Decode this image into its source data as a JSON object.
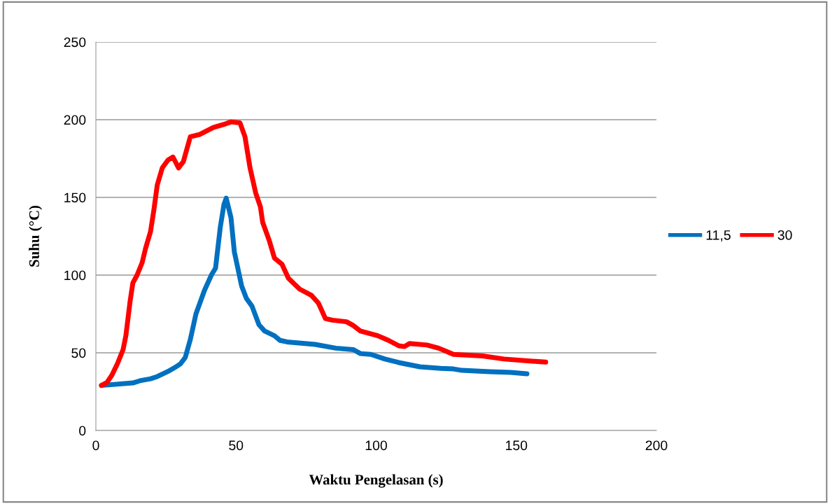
{
  "chart_data": {
    "type": "line",
    "xlabel": "Waktu Pengelasan (s)",
    "ylabel": "Suhu (°C)",
    "xlim": [
      0,
      200
    ],
    "xticks": [
      0,
      50,
      100,
      150,
      200
    ],
    "ylim": [
      0,
      250
    ],
    "yticks": [
      0,
      50,
      100,
      150,
      200,
      250
    ],
    "grid": "y",
    "legend": "right",
    "marker": "none",
    "line_style": "solid",
    "series": [
      {
        "name": "11,5",
        "color": "#0070c0",
        "x": [
          2,
          13.2,
          15.7,
          19.5,
          21.9,
          25.7,
          28.6,
          30.2,
          31.9,
          33.7,
          35.7,
          38.7,
          41.2,
          42.7,
          44.4,
          45.7,
          46.5,
          48.2,
          49.4,
          52,
          53.7,
          55.7,
          58.2,
          60.2,
          63.7,
          65.7,
          68.2,
          78.2,
          85.6,
          91.9,
          94.4,
          98.1,
          103.1,
          108.1,
          115.6,
          123.1,
          127.6,
          130.6,
          140.6,
          148,
          153.8
        ],
        "values": [
          29,
          30.6,
          32,
          33.3,
          34.7,
          38,
          41,
          43,
          47,
          58.6,
          75,
          90,
          100,
          104.5,
          131,
          145.5,
          149.5,
          137,
          115,
          93,
          85,
          80,
          68,
          64,
          61,
          58,
          57,
          55.4,
          53,
          52,
          49.5,
          49,
          46,
          43.7,
          41,
          40,
          39.6,
          38.7,
          37.8,
          37.4,
          36.5
        ]
      },
      {
        "name": "30",
        "color": "#ff0000",
        "x": [
          2,
          4,
          5.7,
          7.7,
          9.7,
          10.7,
          12.2,
          13.2,
          14.7,
          16.5,
          17.7,
          19.5,
          20.7,
          21.9,
          23.7,
          25.7,
          27.5,
          29.5,
          31.2,
          33.7,
          37,
          41.9,
          45.7,
          48.2,
          51.4,
          53.2,
          55,
          57,
          58.7,
          59.5,
          61.9,
          63.7,
          66.4,
          68.7,
          72.7,
          76.9,
          79.4,
          81.9,
          84.4,
          89.4,
          91.9,
          94.4,
          100.6,
          104.4,
          108.1,
          110.1,
          111.9,
          118.1,
          122.3,
          127.6,
          138,
          145.6,
          160.5
        ],
        "values": [
          29,
          31,
          35.6,
          43,
          52,
          61,
          83,
          95,
          100,
          108,
          117,
          128,
          142,
          158,
          169,
          174,
          176,
          169,
          173,
          189,
          190.5,
          195,
          197,
          198.6,
          198,
          189,
          169,
          153,
          144,
          134,
          122,
          111,
          107,
          98,
          91,
          87,
          82,
          72,
          71,
          70,
          67.5,
          64,
          61,
          58,
          54.5,
          54,
          56,
          55,
          53,
          49,
          48,
          46,
          44
        ]
      }
    ]
  }
}
